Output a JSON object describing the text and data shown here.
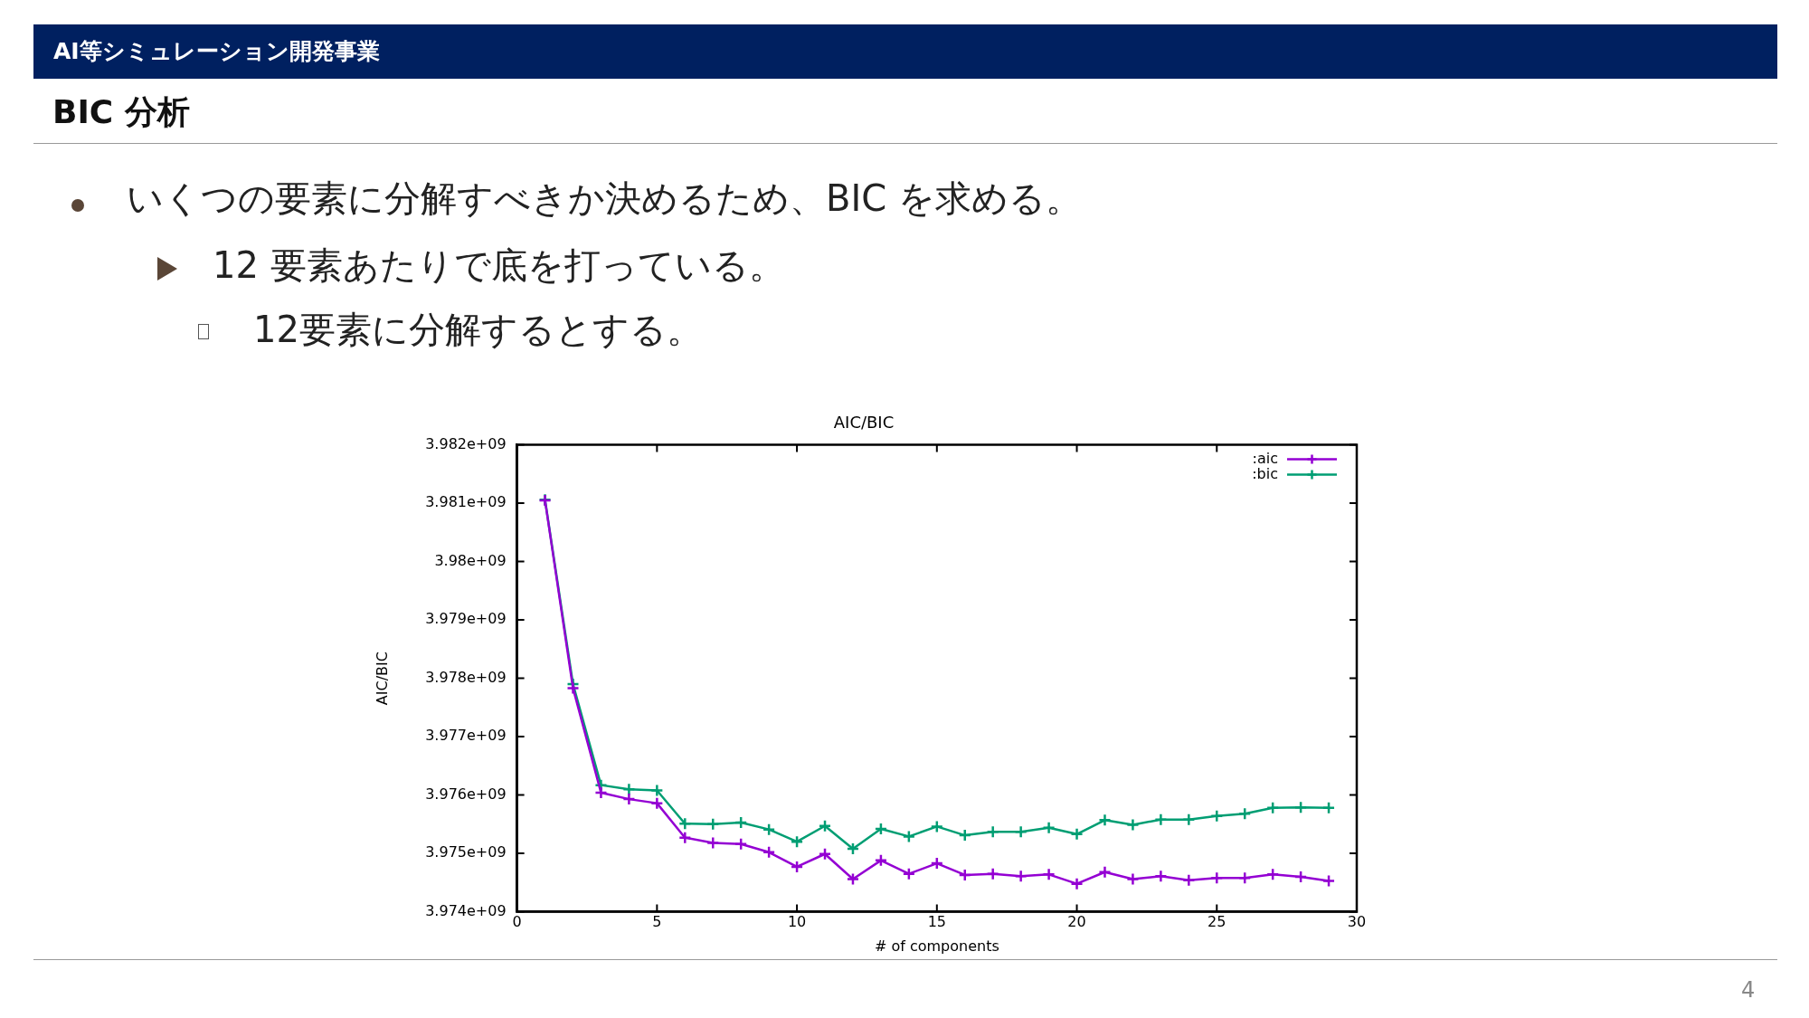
{
  "chart_data": {
    "type": "line",
    "title": "AIC/BIC",
    "xlabel": "# of components",
    "ylabel": "AIC/BIC",
    "annotations": [
      "AI等シミュレーション開発事業",
      "BIC 分析",
      "いくつの要素に分解すべきか決めるため、BIC を求める。",
      "12 要素あたりで底を打っている。",
      "12要素に分解するとする。",
      "4"
    ],
    "x": [
      1,
      2,
      3,
      4,
      5,
      6,
      7,
      8,
      9,
      10,
      11,
      12,
      13,
      14,
      15,
      16,
      17,
      18,
      19,
      20,
      21,
      22,
      23,
      24,
      25,
      26,
      27,
      28,
      29
    ],
    "series": [
      {
        "name": ":aic",
        "color": "#9400d3",
        "marker": "cross",
        "values": [
          3981050000,
          3977830000,
          3976040000,
          3975930000,
          3975860000,
          3975270000,
          3975180000,
          3975160000,
          3975020000,
          3974770000,
          3974990000,
          3974560000,
          3974880000,
          3974650000,
          3974830000,
          3974630000,
          3974650000,
          3974610000,
          3974640000,
          3974480000,
          3974680000,
          3974560000,
          3974610000,
          3974540000,
          3974580000,
          3974580000,
          3974640000,
          3974600000,
          3974530000
        ]
      },
      {
        "name": ":bic",
        "color": "#009e73",
        "marker": "cross",
        "values": [
          3981060000,
          3977900000,
          3976170000,
          3976100000,
          3976080000,
          3975510000,
          3975500000,
          3975530000,
          3975410000,
          3975200000,
          3975470000,
          3975080000,
          3975420000,
          3975290000,
          3975460000,
          3975310000,
          3975370000,
          3975370000,
          3975440000,
          3975330000,
          3975570000,
          3975490000,
          3975580000,
          3975580000,
          3975640000,
          3975680000,
          3975780000,
          3975790000,
          3975780000
        ]
      }
    ],
    "xlim": [
      0,
      30
    ],
    "xticks": [
      0,
      5,
      10,
      15,
      20,
      25,
      30
    ],
    "ylim": [
      3974000000,
      3982000000
    ],
    "yticks": [
      {
        "value": 3974000000,
        "label": "3.974e+09"
      },
      {
        "value": 3975000000,
        "label": "3.975e+09"
      },
      {
        "value": 3976000000,
        "label": "3.976e+09"
      },
      {
        "value": 3977000000,
        "label": "3.977e+09"
      },
      {
        "value": 3978000000,
        "label": "3.978e+09"
      },
      {
        "value": 3979000000,
        "label": "3.979e+09"
      },
      {
        "value": 3980000000,
        "label": "3.98e+09"
      },
      {
        "value": 3981000000,
        "label": "3.981e+09"
      },
      {
        "value": 3982000000,
        "label": "3.982e+09"
      }
    ],
    "grid": false,
    "legend": "top right",
    "line_style": "solid"
  }
}
